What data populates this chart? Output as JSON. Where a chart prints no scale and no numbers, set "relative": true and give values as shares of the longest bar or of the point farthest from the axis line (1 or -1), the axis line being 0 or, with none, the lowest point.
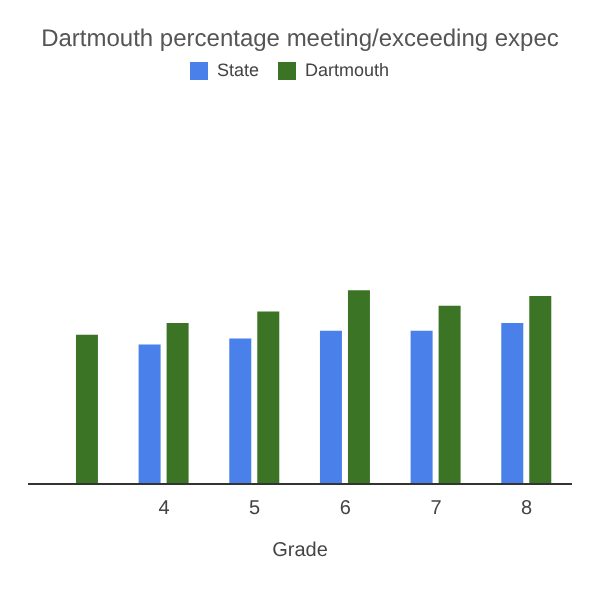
{
  "chart_data": {
    "type": "bar",
    "title": "Dartmouth percentage meeting/exceeding expec",
    "xlabel": "Grade",
    "categories": [
      null,
      "4",
      "5",
      "6",
      "7",
      "8"
    ],
    "relative": true,
    "legend": "top",
    "series": [
      {
        "name": "State",
        "color": "#4a80ea",
        "values": [
          null,
          0.72,
          0.75,
          0.79,
          0.79,
          0.83
        ]
      },
      {
        "name": "Dartmouth",
        "color": "#3b7424",
        "values": [
          0.77,
          0.83,
          0.89,
          1,
          0.92,
          0.97
        ]
      }
    ]
  }
}
